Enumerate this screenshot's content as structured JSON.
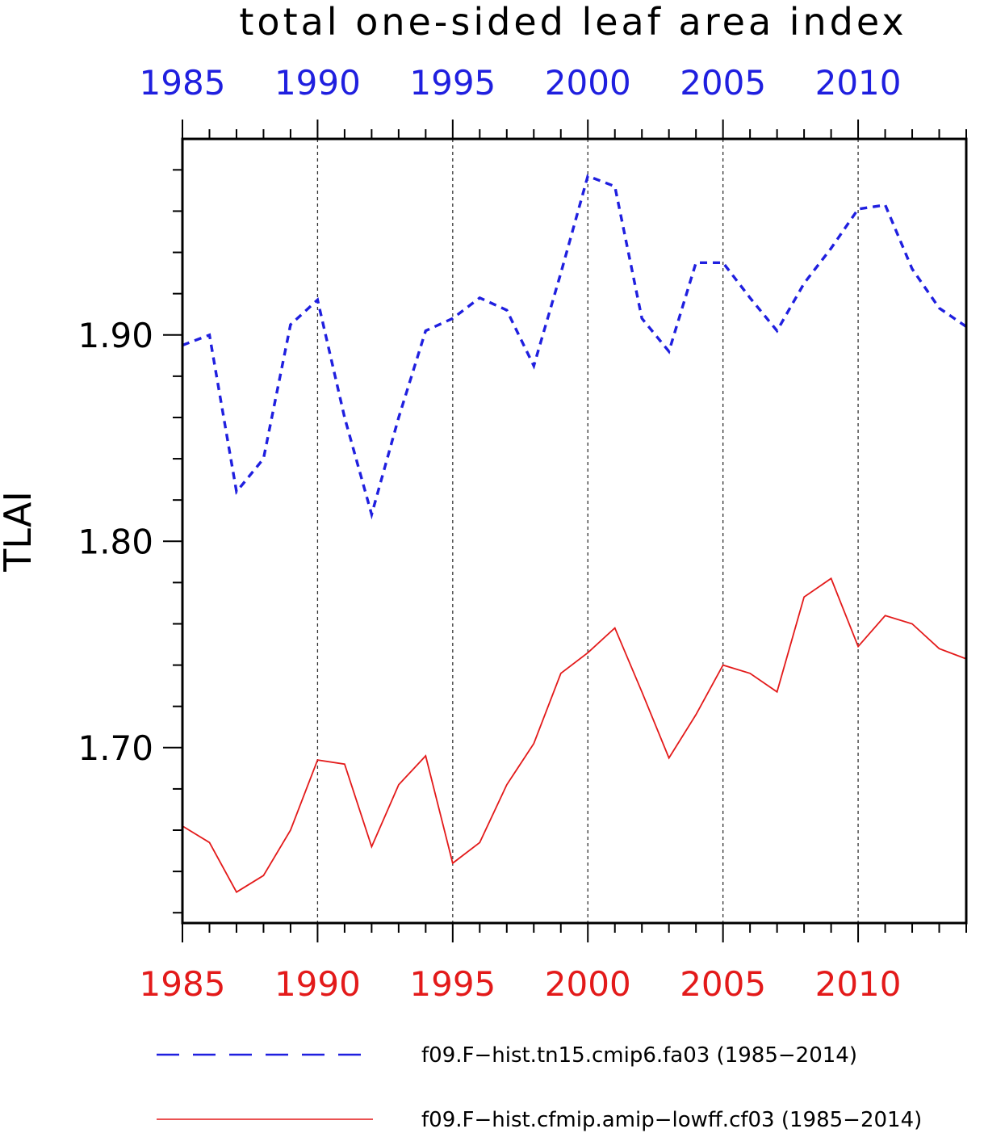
{
  "chart_data": {
    "type": "line",
    "title": "total one-sided leaf area index",
    "ylabel": "TLAI",
    "xlabel": "",
    "xlim": [
      1985,
      2014
    ],
    "ylim": [
      1.615,
      1.995
    ],
    "yticks_major": [
      1.7,
      1.8,
      1.9
    ],
    "ytick_labels": [
      "1.70",
      "1.80",
      "1.90"
    ],
    "yticks_minor": [
      1.62,
      1.64,
      1.66,
      1.68,
      1.72,
      1.74,
      1.76,
      1.78,
      1.82,
      1.84,
      1.86,
      1.88,
      1.92,
      1.94,
      1.96,
      1.98
    ],
    "xticks_major": [
      1985,
      1990,
      1995,
      2000,
      2005,
      2010
    ],
    "top_axis": {
      "color": "#1f1fdf",
      "labels": [
        "1985",
        "1990",
        "1995",
        "2000",
        "2005",
        "2010"
      ]
    },
    "bottom_axis": {
      "color": "#e31a1a",
      "labels": [
        "1985",
        "1990",
        "1995",
        "2000",
        "2005",
        "2010"
      ]
    },
    "vertical_gridlines": [
      1990,
      1995,
      2000,
      2005,
      2010
    ],
    "series": [
      {
        "name": "f09.F−hist.tn15.cmip6.fa03 (1985−2014)",
        "color": "#1f1fdf",
        "style": "dashed",
        "x": [
          1985,
          1986,
          1987,
          1988,
          1989,
          1990,
          1991,
          1992,
          1993,
          1994,
          1995,
          1996,
          1997,
          1998,
          1999,
          2000,
          2001,
          2002,
          2003,
          2004,
          2005,
          2006,
          2007,
          2008,
          2009,
          2010,
          2011,
          2012,
          2013,
          2014
        ],
        "values": [
          1.895,
          1.9,
          1.824,
          1.84,
          1.905,
          1.917,
          1.86,
          1.813,
          1.86,
          1.902,
          1.908,
          1.918,
          1.912,
          1.885,
          1.93,
          1.977,
          1.972,
          1.908,
          1.892,
          1.935,
          1.935,
          1.918,
          1.902,
          1.925,
          1.942,
          1.961,
          1.963,
          1.932,
          1.913,
          1.904
        ]
      },
      {
        "name": "f09.F−hist.cfmip.amip−lowff.cf03 (1985−2014)",
        "color": "#e31a1a",
        "style": "solid",
        "x": [
          1985,
          1986,
          1987,
          1988,
          1989,
          1990,
          1991,
          1992,
          1993,
          1994,
          1995,
          1996,
          1997,
          1998,
          1999,
          2000,
          2001,
          2002,
          2003,
          2004,
          2005,
          2006,
          2007,
          2008,
          2009,
          2010,
          2011,
          2012,
          2013,
          2014
        ],
        "values": [
          1.662,
          1.654,
          1.63,
          1.638,
          1.66,
          1.694,
          1.692,
          1.652,
          1.682,
          1.696,
          1.644,
          1.654,
          1.682,
          1.702,
          1.736,
          1.746,
          1.758,
          1.727,
          1.695,
          1.716,
          1.74,
          1.736,
          1.727,
          1.773,
          1.782,
          1.749,
          1.764,
          1.76,
          1.748,
          1.743
        ]
      }
    ],
    "legend": {
      "placement": "bottom"
    }
  }
}
